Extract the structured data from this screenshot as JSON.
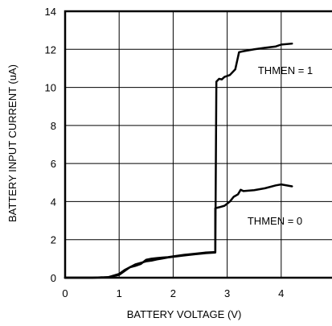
{
  "chart_data": {
    "type": "line",
    "title": "",
    "xlabel": "BATTERY VOLTAGE (V)",
    "ylabel": "BATTERY INPUT CURRENT (uA)",
    "xlim": [
      0,
      5
    ],
    "ylim": [
      0,
      14
    ],
    "x_ticks": [
      "0",
      "1",
      "2",
      "3",
      "4",
      "5"
    ],
    "y_ticks": [
      "0",
      "2",
      "4",
      "6",
      "8",
      "10",
      "12",
      "14"
    ],
    "grid": true,
    "annotations": [
      "THMEN = 1",
      "THMEN = 0"
    ],
    "series": [
      {
        "points": [
          [
            0,
            0
          ],
          [
            0.5,
            0
          ],
          [
            0.8,
            0.02
          ],
          [
            1.0,
            0.15
          ],
          [
            1.1,
            0.35
          ],
          [
            1.2,
            0.55
          ],
          [
            1.3,
            0.7
          ],
          [
            1.4,
            0.78
          ],
          [
            1.5,
            0.86
          ],
          [
            1.6,
            0.9
          ],
          [
            1.7,
            0.96
          ],
          [
            1.8,
            1.01
          ],
          [
            1.9,
            1.06
          ],
          [
            2.0,
            1.1
          ],
          [
            2.2,
            1.17
          ],
          [
            2.4,
            1.23
          ],
          [
            2.6,
            1.29
          ],
          [
            2.78,
            1.32
          ],
          [
            2.78,
            3.65
          ],
          [
            2.85,
            3.7
          ],
          [
            2.95,
            3.78
          ],
          [
            3.05,
            4.0
          ],
          [
            3.12,
            4.25
          ],
          [
            3.2,
            4.38
          ],
          [
            3.25,
            4.62
          ],
          [
            3.3,
            4.55
          ],
          [
            3.5,
            4.6
          ],
          [
            3.7,
            4.7
          ],
          [
            3.9,
            4.85
          ],
          [
            4.0,
            4.9
          ],
          [
            4.2,
            4.8
          ]
        ]
      },
      {
        "points": [
          [
            0,
            0
          ],
          [
            0.5,
            0
          ],
          [
            0.8,
            0.03
          ],
          [
            1.0,
            0.2
          ],
          [
            1.1,
            0.4
          ],
          [
            1.2,
            0.55
          ],
          [
            1.3,
            0.62
          ],
          [
            1.4,
            0.72
          ],
          [
            1.5,
            0.94
          ],
          [
            1.6,
            1.0
          ],
          [
            1.7,
            1.03
          ],
          [
            1.8,
            1.06
          ],
          [
            1.9,
            1.08
          ],
          [
            2.0,
            1.12
          ],
          [
            2.2,
            1.2
          ],
          [
            2.4,
            1.26
          ],
          [
            2.6,
            1.32
          ],
          [
            2.78,
            1.35
          ],
          [
            2.8,
            10.3
          ],
          [
            2.85,
            10.45
          ],
          [
            2.9,
            10.42
          ],
          [
            2.95,
            10.55
          ],
          [
            3.05,
            10.65
          ],
          [
            3.15,
            10.95
          ],
          [
            3.22,
            11.85
          ],
          [
            3.3,
            11.9
          ],
          [
            3.5,
            12.0
          ],
          [
            3.7,
            12.08
          ],
          [
            3.9,
            12.15
          ],
          [
            4.0,
            12.25
          ],
          [
            4.2,
            12.3
          ]
        ]
      }
    ]
  }
}
